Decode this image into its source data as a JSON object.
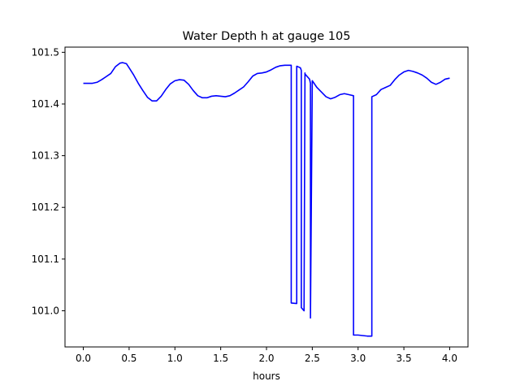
{
  "chart_data": {
    "type": "line",
    "title": "Water Depth h at gauge 105",
    "xlabel": "hours",
    "ylabel": "",
    "xlim": [
      -0.2,
      4.2
    ],
    "ylim": [
      100.93,
      101.51
    ],
    "xticks": [
      0.0,
      0.5,
      1.0,
      1.5,
      2.0,
      2.5,
      3.0,
      3.5,
      4.0
    ],
    "xtick_labels": [
      "0.0",
      "0.5",
      "1.0",
      "1.5",
      "2.0",
      "2.5",
      "3.0",
      "3.5",
      "4.0"
    ],
    "yticks": [
      101.0,
      101.1,
      101.2,
      101.3,
      101.4,
      101.5
    ],
    "ytick_labels": [
      "101.0",
      "101.1",
      "101.2",
      "101.3",
      "101.4",
      "101.5"
    ],
    "grid": false,
    "legend": false,
    "color": "#0000ff",
    "series": [
      {
        "x": [
          0.0,
          0.1,
          0.15,
          0.2,
          0.3,
          0.35,
          0.4,
          0.43,
          0.47,
          0.5,
          0.55,
          0.6,
          0.65,
          0.7,
          0.75,
          0.8,
          0.85,
          0.9,
          0.95,
          1.0,
          1.05,
          1.1,
          1.15,
          1.2,
          1.25,
          1.3,
          1.35,
          1.4,
          1.45,
          1.5,
          1.55,
          1.6,
          1.65,
          1.7,
          1.75,
          1.8,
          1.85,
          1.9,
          1.95,
          2.0,
          2.05,
          2.1,
          2.15,
          2.2,
          2.25,
          2.27,
          2.27,
          2.33,
          2.33,
          2.37,
          2.38,
          2.38,
          2.41,
          2.42,
          2.42,
          2.45,
          2.47,
          2.48,
          2.48,
          2.5,
          2.55,
          2.6,
          2.65,
          2.7,
          2.75,
          2.8,
          2.85,
          2.9,
          2.95,
          2.95,
          3.0,
          3.1,
          3.15,
          3.15,
          3.2,
          3.25,
          3.3,
          3.35,
          3.4,
          3.45,
          3.5,
          3.55,
          3.6,
          3.65,
          3.7,
          3.75,
          3.8,
          3.85,
          3.9,
          3.95,
          4.0
        ],
        "y": [
          101.44,
          101.44,
          101.442,
          101.447,
          101.459,
          101.472,
          101.479,
          101.48,
          101.478,
          101.47,
          101.456,
          101.44,
          101.426,
          101.413,
          101.406,
          101.406,
          101.415,
          101.428,
          101.439,
          101.445,
          101.447,
          101.446,
          101.438,
          101.426,
          101.416,
          101.412,
          101.412,
          101.415,
          101.416,
          101.415,
          101.414,
          101.416,
          101.421,
          101.427,
          101.433,
          101.443,
          101.454,
          101.459,
          101.46,
          101.462,
          101.466,
          101.471,
          101.474,
          101.475,
          101.475,
          101.475,
          101.015,
          101.014,
          101.473,
          101.47,
          101.465,
          101.006,
          101.0,
          101.46,
          101.458,
          101.452,
          101.448,
          101.44,
          100.986,
          101.445,
          101.432,
          101.423,
          101.414,
          101.41,
          101.413,
          101.418,
          101.42,
          101.418,
          101.416,
          100.953,
          100.953,
          100.951,
          100.951,
          101.414,
          101.418,
          101.428,
          101.432,
          101.436,
          101.447,
          101.456,
          101.462,
          101.465,
          101.463,
          101.46,
          101.456,
          101.45,
          101.442,
          101.438,
          101.442,
          101.448,
          101.45
        ]
      }
    ]
  }
}
